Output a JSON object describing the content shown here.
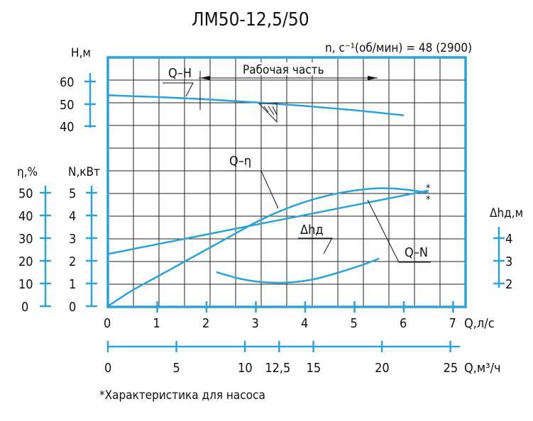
{
  "chart_data": {
    "type": "line",
    "title": "ЛМ50-12,5/50",
    "speed_label": "n, c⁻¹(об/мин) = 48 (2900)",
    "working_range_label": "Рабочая часть",
    "footnote": "*Характеристика для насоса",
    "star_marks": [
      "*",
      "*"
    ],
    "x_axis": {
      "label": "Q,л/с",
      "ticks": [
        "0",
        "1",
        "2",
        "3",
        "4",
        "5",
        "6",
        "7"
      ],
      "range": [
        0,
        7.3
      ]
    },
    "x2_axis": {
      "label": "Q,м³/ч",
      "ticks": [
        "0",
        "5",
        "10",
        "12,5",
        "15",
        "20",
        "25"
      ],
      "tick_values": [
        0,
        5,
        10,
        12.5,
        15,
        20,
        25
      ]
    },
    "axes": {
      "H": {
        "label": "Н,м",
        "ticks": [
          "60",
          "50",
          "40"
        ]
      },
      "eta": {
        "label": "η,%",
        "ticks": [
          "50",
          "40",
          "30",
          "20",
          "10",
          "0"
        ]
      },
      "N": {
        "label": "N,кВт",
        "ticks": [
          "5",
          "4",
          "3",
          "2",
          "1",
          "0"
        ]
      },
      "dh": {
        "label": "Δhд,м",
        "ticks": [
          "4",
          "3",
          "2"
        ]
      }
    },
    "series": [
      {
        "name": "Q–H",
        "axis": "H",
        "x": [
          0,
          1,
          2,
          3,
          4,
          5,
          6
        ],
        "y": [
          54,
          53.2,
          52.2,
          50.8,
          49.2,
          47.3,
          45
        ]
      },
      {
        "name": "Q–η",
        "axis": "eta",
        "x": [
          0,
          0.5,
          1,
          1.5,
          2,
          2.5,
          3,
          3.5,
          4,
          4.5,
          5,
          5.5,
          6,
          6.5
        ],
        "y": [
          0,
          7,
          13,
          19,
          25,
          31,
          37,
          42,
          46,
          49,
          51,
          52,
          51.5,
          50
        ]
      },
      {
        "name": "Q–N",
        "axis": "N",
        "x": [
          0,
          6.5
        ],
        "y": [
          2.3,
          5.1
        ]
      },
      {
        "name": "Δhд",
        "axis": "dh",
        "x": [
          2.2,
          2.7,
          3.2,
          3.7,
          4.2,
          4.7,
          5.2,
          5.5
        ],
        "y": [
          2.5,
          2.2,
          2.05,
          2.05,
          2.2,
          2.5,
          2.85,
          3.1
        ]
      }
    ],
    "working_range_q": [
      1.9,
      5.4
    ]
  }
}
